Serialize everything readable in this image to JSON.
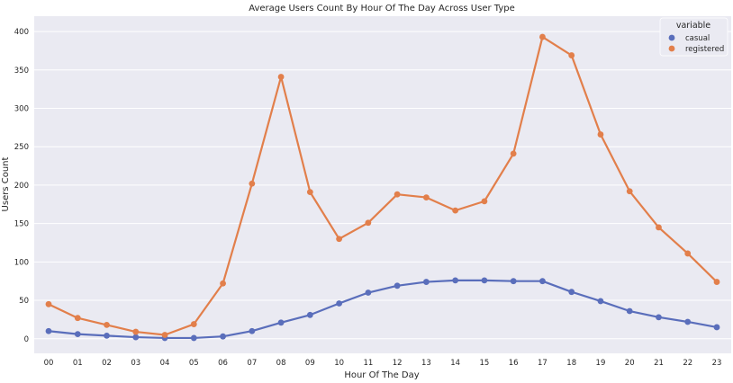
{
  "chart_data": {
    "type": "line",
    "title": "Average Users Count By Hour Of The Day Across User Type",
    "xlabel": "Hour Of The Day",
    "ylabel": "Users Count",
    "categories": [
      "00",
      "01",
      "02",
      "03",
      "04",
      "05",
      "06",
      "07",
      "08",
      "09",
      "10",
      "11",
      "12",
      "13",
      "14",
      "15",
      "16",
      "17",
      "18",
      "19",
      "20",
      "21",
      "22",
      "23"
    ],
    "ylim": [
      -19,
      420
    ],
    "yticks": [
      0,
      50,
      100,
      150,
      200,
      250,
      300,
      350,
      400
    ],
    "grid": true,
    "legend": {
      "title": "variable",
      "placement": "top-right"
    },
    "series": [
      {
        "name": "casual",
        "color": "#5a6ebb",
        "values": [
          10,
          6,
          4,
          2,
          1,
          1,
          3,
          10,
          21,
          31,
          46,
          60,
          69,
          74,
          76,
          76,
          75,
          75,
          61,
          49,
          36,
          28,
          22,
          15
        ]
      },
      {
        "name": "registered",
        "color": "#e27f4b",
        "values": [
          45,
          27,
          18,
          9,
          5,
          19,
          72,
          202,
          341,
          191,
          130,
          151,
          188,
          184,
          167,
          179,
          241,
          393,
          369,
          266,
          192,
          145,
          111,
          74
        ]
      }
    ]
  }
}
